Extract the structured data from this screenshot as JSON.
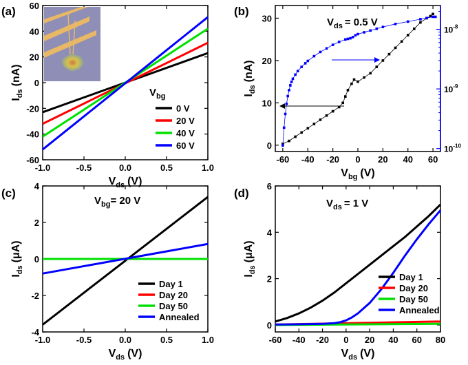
{
  "panels": [
    {
      "tag": "(a)",
      "inset_image": "device-micrograph",
      "legend_title": "V",
      "legend_title_sub": "bg",
      "chart_data": {
        "type": "line",
        "xlabel": "V",
        "xlabel_sub": "ds",
        "xunit": "(V)",
        "ylabel": "I",
        "ylabel_sub": "ds",
        "yunit": "(nA)",
        "xlim": [
          -1.0,
          1.0
        ],
        "ylim": [
          -60,
          60
        ],
        "xticks": [
          "-1.0",
          "-0.5",
          "0.0",
          "0.5",
          "1.0"
        ],
        "yticks": [
          "-60",
          "-40",
          "-20",
          "0",
          "20",
          "40",
          "60"
        ],
        "series": [
          {
            "name": "0 V",
            "color": "#000000",
            "x": [
              -1.0,
              1.0
            ],
            "y": [
              -23,
              23
            ]
          },
          {
            "name": "20 V",
            "color": "#ff0000",
            "x": [
              -1.0,
              1.0
            ],
            "y": [
              -32,
              31
            ]
          },
          {
            "name": "40 V",
            "color": "#00e000",
            "x": [
              -1.0,
              1.0
            ],
            "y": [
              -42,
              42
            ]
          },
          {
            "name": "60 V",
            "color": "#0000ff",
            "x": [
              -1.0,
              1.0
            ],
            "y": [
              -52,
              51
            ]
          }
        ]
      }
    },
    {
      "tag": "(b)",
      "condition": "V",
      "condition_sub": "ds",
      "condition_value": "= 0.5 V",
      "chart_data": {
        "type": "scatter",
        "xlabel": "V",
        "xlabel_sub": "bg",
        "xunit": "(V)",
        "ylabel": "I",
        "ylabel_sub": "ds",
        "yunit": "(nA)",
        "xlim": [
          -66,
          66
        ],
        "ylim": [
          -1.5,
          33
        ],
        "xticks": [
          "-60",
          "-40",
          "-20",
          "0",
          "20",
          "40",
          "60"
        ],
        "yticks": [
          "0",
          "10",
          "20",
          "30"
        ],
        "right_axis": {
          "scale": "log",
          "color": "#0000ff",
          "ticks": [
            {
              "base": "10",
              "exp": "-10"
            },
            {
              "base": "10",
              "exp": "-9"
            },
            {
              "base": "10",
              "exp": "-8"
            }
          ],
          "ylim_log": [
            -10.05,
            -7.6
          ]
        },
        "series": [
          {
            "axis": "left",
            "color": "#000000",
            "x": [
              -60,
              -55,
              -50,
              -45,
              -40,
              -35,
              -30,
              -25,
              -20,
              -15,
              -12,
              -10,
              -8,
              -5,
              -3,
              0,
              5,
              10,
              15,
              20,
              25,
              30,
              35,
              40,
              45,
              50,
              55,
              58,
              60
            ],
            "y": [
              0.3,
              1.0,
              2.0,
              3.0,
              4.0,
              5.0,
              6.0,
              7.0,
              8.0,
              9.0,
              10.0,
              11.5,
              13.0,
              14.5,
              15.5,
              15.0,
              16.0,
              17.0,
              18.5,
              20.0,
              21.5,
              23.0,
              24.5,
              26.0,
              27.5,
              29.0,
              30.0,
              30.5,
              31.0
            ]
          },
          {
            "axis": "right",
            "color": "#0000ff",
            "x": [
              -60,
              -59,
              -58,
              -57,
              -56,
              -55,
              -54,
              -53,
              -52,
              -50,
              -48,
              -45,
              -42,
              -40,
              -35,
              -30,
              -25,
              -20,
              -15,
              -10,
              -8,
              -6,
              -4,
              -2,
              0,
              5,
              10,
              15,
              20,
              30,
              40,
              50,
              55,
              60,
              62
            ],
            "log10y": [
              -9.95,
              -9.65,
              -9.42,
              -9.25,
              -9.12,
              -9.02,
              -8.94,
              -8.88,
              -8.83,
              -8.76,
              -8.7,
              -8.63,
              -8.57,
              -8.53,
              -8.45,
              -8.38,
              -8.32,
              -8.26,
              -8.21,
              -8.17,
              -8.16,
              -8.15,
              -8.13,
              -8.1,
              -8.08,
              -8.05,
              -8.02,
              -7.99,
              -7.96,
              -7.91,
              -7.87,
              -7.83,
              -7.81,
              -7.79,
              -7.79
            ]
          }
        ]
      }
    },
    {
      "tag": "(c)",
      "condition": "V",
      "condition_sub": "bg",
      "condition_value": "= 20 V",
      "chart_data": {
        "type": "line",
        "xlabel": "V",
        "xlabel_sub": "ds",
        "xunit": "(V)",
        "ylabel": "I",
        "ylabel_sub": "ds",
        "yunit": "(μA)",
        "xlim": [
          -1.0,
          1.0
        ],
        "ylim": [
          -4,
          4
        ],
        "xticks": [
          "-1.0",
          "-0.5",
          "0.0",
          "0.5",
          "1.0"
        ],
        "yticks": [
          "-4",
          "-2",
          "0",
          "2",
          "4"
        ],
        "series": [
          {
            "name": "Day 1",
            "color": "#000000",
            "x": [
              -1.0,
              1.0
            ],
            "y": [
              -3.6,
              3.4
            ]
          },
          {
            "name": "Day 20",
            "color": "#ff0000",
            "x": [
              -1.0,
              1.0
            ],
            "y": [
              0.0,
              0.0
            ]
          },
          {
            "name": "Day 50",
            "color": "#00e000",
            "x": [
              -1.0,
              1.0
            ],
            "y": [
              0.0,
              0.0
            ]
          },
          {
            "name": "Annealed",
            "color": "#0000ff",
            "x": [
              -1.0,
              1.0
            ],
            "y": [
              -0.8,
              0.82
            ]
          }
        ]
      }
    },
    {
      "tag": "(d)",
      "condition": "V",
      "condition_sub": "ds",
      "condition_value": "= 1 V",
      "chart_data": {
        "type": "line",
        "xlabel": "V",
        "xlabel_sub": "ds",
        "xunit": "(V)",
        "ylabel": "I",
        "ylabel_sub": "ds",
        "yunit": "(μA)",
        "xlim": [
          -60,
          80
        ],
        "ylim": [
          -0.3,
          6
        ],
        "xticks": [
          "-60",
          "-40",
          "-20",
          "0",
          "20",
          "40",
          "60",
          "80"
        ],
        "yticks": [
          "0",
          "2",
          "4",
          "6"
        ],
        "series": [
          {
            "name": "Day 1",
            "color": "#000000",
            "x": [
              -60,
              -50,
              -40,
              -30,
              -20,
              -10,
              0,
              10,
              20,
              30,
              40,
              50,
              60,
              70,
              80
            ],
            "y": [
              0.15,
              0.3,
              0.5,
              0.75,
              1.05,
              1.4,
              1.8,
              2.2,
              2.6,
              3.0,
              3.4,
              3.8,
              4.25,
              4.7,
              5.2
            ]
          },
          {
            "name": "Day 20",
            "color": "#ff0000",
            "x": [
              -60,
              80
            ],
            "y": [
              0.02,
              0.15
            ]
          },
          {
            "name": "Day 50",
            "color": "#00e000",
            "x": [
              -60,
              80
            ],
            "y": [
              0.0,
              0.05
            ]
          },
          {
            "name": "Annealed",
            "color": "#0000ff",
            "x": [
              -60,
              -40,
              -20,
              -10,
              -5,
              0,
              5,
              10,
              20,
              30,
              40,
              50,
              60,
              70,
              80
            ],
            "y": [
              0.02,
              0.03,
              0.05,
              0.08,
              0.12,
              0.2,
              0.33,
              0.5,
              0.95,
              1.55,
              2.25,
              3.0,
              3.7,
              4.35,
              4.95
            ]
          }
        ]
      }
    }
  ]
}
